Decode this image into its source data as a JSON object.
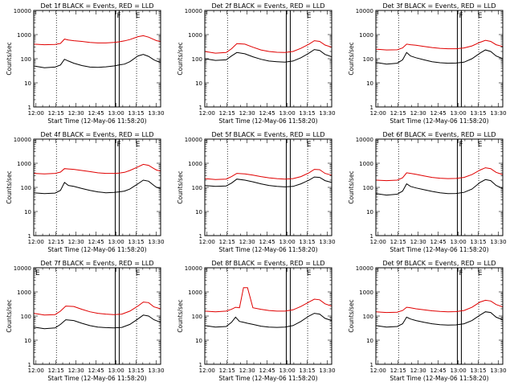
{
  "figure": {
    "common_ylabel": "Counts/sec",
    "common_xlabel": "Start Time (12-May-06 11:58:20)",
    "x_ticks": [
      "12:00",
      "12:15",
      "12:30",
      "12:45",
      "13:00",
      "13:15",
      "13:30"
    ],
    "y_ticks": [
      "1",
      "10",
      "100",
      "1000",
      "10000"
    ],
    "legend_black": "Events",
    "legend_red": "LLD",
    "series_colors": {
      "events": "#000000",
      "lld": "#e00000"
    },
    "flag_letters": [
      "F",
      "E",
      "E"
    ]
  },
  "chart_data": [
    {
      "type": "line",
      "detector": "1f",
      "title": "Det 1f BLACK = Events, RED = LLD",
      "xlabel": "Start Time (12-May-06 11:58:20)",
      "ylabel": "Counts/sec",
      "xlim_min": [
        0,
        95
      ],
      "ylim_log": [
        1,
        10000
      ],
      "x": [
        0,
        8,
        16,
        20,
        23,
        26,
        30,
        36,
        42,
        48,
        54,
        60,
        64,
        68,
        72,
        78,
        82,
        86,
        90,
        92,
        95
      ],
      "series": [
        {
          "name": "Events",
          "values": [
            50,
            42,
            45,
            55,
            95,
            80,
            65,
            52,
            45,
            44,
            46,
            50,
            55,
            60,
            75,
            130,
            150,
            125,
            90,
            80,
            70
          ]
        },
        {
          "name": "LLD",
          "values": [
            400,
            380,
            390,
            430,
            650,
            600,
            560,
            520,
            470,
            450,
            450,
            470,
            500,
            550,
            620,
            820,
            900,
            780,
            620,
            560,
            520
          ]
        }
      ],
      "markers": {
        "dotted_min": [
          17,
          77
        ],
        "solid_min": [
          61,
          64
        ],
        "letters": [
          {
            "text": "F",
            "min": 61
          },
          {
            "text": "E",
            "min": 75
          }
        ]
      }
    },
    {
      "type": "line",
      "detector": "2f",
      "title": "Det 2f BLACK = Events, RED = LLD",
      "xlabel": "Start Time (12-May-06 11:58:20)",
      "ylabel": "Counts/sec",
      "xlim_min": [
        0,
        95
      ],
      "ylim_log": [
        1,
        10000
      ],
      "x": [
        0,
        8,
        16,
        20,
        24,
        30,
        36,
        42,
        48,
        54,
        60,
        66,
        72,
        78,
        82,
        86,
        90,
        95
      ],
      "series": [
        {
          "name": "Events",
          "values": [
            100,
            85,
            90,
            130,
            180,
            160,
            120,
            95,
            80,
            75,
            72,
            80,
            110,
            170,
            240,
            220,
            150,
            120
          ]
        },
        {
          "name": "LLD",
          "values": [
            200,
            170,
            180,
            260,
            420,
            400,
            300,
            230,
            200,
            185,
            180,
            200,
            270,
            400,
            560,
            520,
            370,
            300
          ]
        }
      ],
      "markers": {
        "dotted_min": [
          17,
          77
        ],
        "solid_min": [
          61,
          64
        ],
        "letters": [
          {
            "text": "E",
            "min": 75
          }
        ]
      }
    },
    {
      "type": "line",
      "detector": "3f",
      "title": "Det 3f BLACK = Events, RED = LLD",
      "xlabel": "Start Time (12-May-06 11:58:20)",
      "ylabel": "Counts/sec",
      "xlim_min": [
        0,
        95
      ],
      "ylim_log": [
        1,
        10000
      ],
      "x": [
        0,
        8,
        16,
        20,
        23,
        26,
        30,
        36,
        42,
        48,
        54,
        60,
        66,
        72,
        78,
        82,
        86,
        90,
        95
      ],
      "series": [
        {
          "name": "Events",
          "values": [
            70,
            60,
            65,
            90,
            180,
            130,
            110,
            90,
            75,
            68,
            65,
            66,
            72,
            100,
            170,
            230,
            200,
            130,
            100
          ]
        },
        {
          "name": "LLD",
          "values": [
            250,
            230,
            235,
            280,
            400,
            380,
            360,
            320,
            290,
            270,
            260,
            260,
            280,
            340,
            480,
            580,
            520,
            380,
            320
          ]
        }
      ],
      "markers": {
        "dotted_min": [
          17,
          77
        ],
        "solid_min": [
          61,
          64
        ],
        "letters": [
          {
            "text": "F",
            "min": 61
          },
          {
            "text": "E",
            "min": 75
          }
        ]
      }
    },
    {
      "type": "line",
      "detector": "4f",
      "title": "Det 4f BLACK = Events, RED = LLD",
      "xlabel": "Start Time (12-May-06 11:58:20)",
      "ylabel": "Counts/sec",
      "xlim_min": [
        0,
        95
      ],
      "ylim_log": [
        1,
        10000
      ],
      "x": [
        0,
        8,
        16,
        20,
        23,
        26,
        30,
        36,
        42,
        48,
        54,
        60,
        64,
        68,
        72,
        78,
        82,
        86,
        90,
        92,
        95
      ],
      "series": [
        {
          "name": "Events",
          "values": [
            60,
            55,
            58,
            75,
            160,
            120,
            110,
            90,
            75,
            65,
            60,
            62,
            65,
            70,
            85,
            140,
            200,
            180,
            120,
            100,
            90
          ]
        },
        {
          "name": "LLD",
          "values": [
            380,
            360,
            380,
            430,
            600,
            580,
            560,
            500,
            450,
            400,
            380,
            380,
            390,
            420,
            500,
            700,
            900,
            820,
            600,
            520,
            470
          ]
        }
      ],
      "markers": {
        "dotted_min": [
          17,
          77
        ],
        "solid_min": [
          61,
          64
        ],
        "letters": [
          {
            "text": "F",
            "min": 61
          },
          {
            "text": "E",
            "min": 75
          }
        ]
      }
    },
    {
      "type": "line",
      "detector": "5f",
      "title": "Det 5f BLACK = Events, RED = LLD",
      "xlabel": "Start Time (12-May-06 11:58:20)",
      "ylabel": "Counts/sec",
      "xlim_min": [
        0,
        95
      ],
      "ylim_log": [
        1,
        10000
      ],
      "x": [
        0,
        8,
        16,
        20,
        24,
        30,
        36,
        42,
        48,
        54,
        60,
        66,
        72,
        78,
        82,
        86,
        90,
        95
      ],
      "series": [
        {
          "name": "Events",
          "values": [
            120,
            110,
            115,
            150,
            220,
            200,
            170,
            140,
            120,
            110,
            105,
            110,
            140,
            200,
            270,
            260,
            190,
            160
          ]
        },
        {
          "name": "LLD",
          "values": [
            230,
            210,
            220,
            280,
            380,
            360,
            320,
            280,
            250,
            230,
            220,
            230,
            280,
            400,
            560,
            540,
            380,
            320
          ]
        }
      ],
      "markers": {
        "dotted_min": [
          17,
          77
        ],
        "solid_min": [
          61,
          64
        ],
        "letters": [
          {
            "text": "E",
            "min": 75
          }
        ]
      }
    },
    {
      "type": "line",
      "detector": "6f",
      "title": "Det 6f BLACK = Events, RED = LLD",
      "xlabel": "Start Time (12-May-06 11:58:20)",
      "ylabel": "Counts/sec",
      "xlim_min": [
        0,
        95
      ],
      "ylim_log": [
        1,
        10000
      ],
      "x": [
        0,
        8,
        16,
        20,
        23,
        26,
        30,
        36,
        42,
        48,
        54,
        60,
        66,
        72,
        78,
        82,
        86,
        90,
        95
      ],
      "series": [
        {
          "name": "Events",
          "values": [
            55,
            48,
            52,
            70,
            140,
            110,
            95,
            80,
            68,
            60,
            55,
            56,
            62,
            85,
            160,
            210,
            190,
            120,
            90
          ]
        },
        {
          "name": "LLD",
          "values": [
            200,
            190,
            200,
            250,
            400,
            380,
            350,
            300,
            260,
            240,
            230,
            235,
            260,
            340,
            520,
            650,
            600,
            420,
            340
          ]
        }
      ],
      "markers": {
        "dotted_min": [
          17,
          77
        ],
        "solid_min": [
          61,
          64
        ],
        "letters": [
          {
            "text": "F",
            "min": 61
          },
          {
            "text": "E",
            "min": 75
          }
        ]
      }
    },
    {
      "type": "line",
      "detector": "7f",
      "title": "Det 7f BLACK = Events, RED = LLD",
      "xlabel": "Start Time (12-May-06 11:58:20)",
      "ylabel": "Counts/sec",
      "xlim_min": [
        0,
        95
      ],
      "ylim_log": [
        1,
        10000
      ],
      "x": [
        0,
        8,
        16,
        20,
        24,
        30,
        36,
        42,
        48,
        54,
        60,
        66,
        72,
        78,
        82,
        86,
        90,
        95
      ],
      "series": [
        {
          "name": "Events",
          "values": [
            35,
            30,
            32,
            45,
            70,
            65,
            50,
            40,
            35,
            33,
            32,
            34,
            45,
            75,
            110,
            100,
            70,
            55
          ]
        },
        {
          "name": "LLD",
          "values": [
            130,
            110,
            115,
            160,
            260,
            250,
            190,
            150,
            130,
            120,
            115,
            120,
            160,
            260,
            380,
            360,
            240,
            200
          ]
        }
      ],
      "markers": {
        "dotted_min": [
          17,
          77
        ],
        "solid_min": [
          61,
          64
        ],
        "letters": [
          {
            "text": "E",
            "min": 0
          },
          {
            "text": "E",
            "min": 75
          }
        ]
      }
    },
    {
      "type": "line",
      "detector": "8f",
      "title": "Det 8f BLACK = Events, RED = LLD",
      "xlabel": "Start Time (12-May-06 11:58:20)",
      "ylabel": "Counts/sec",
      "xlim_min": [
        0,
        95
      ],
      "ylim_log": [
        1,
        10000
      ],
      "x": [
        0,
        8,
        16,
        20,
        23,
        26,
        29,
        32,
        36,
        42,
        48,
        54,
        60,
        66,
        72,
        78,
        82,
        86,
        90,
        95
      ],
      "series": [
        {
          "name": "Events",
          "values": [
            40,
            35,
            37,
            55,
            90,
            60,
            55,
            50,
            45,
            38,
            35,
            34,
            35,
            40,
            60,
            100,
            130,
            120,
            80,
            65
          ]
        },
        {
          "name": "LLD",
          "values": [
            160,
            150,
            160,
            190,
            230,
            220,
            1500,
            1500,
            220,
            190,
            170,
            160,
            160,
            180,
            250,
            380,
            500,
            470,
            320,
            260
          ]
        }
      ],
      "markers": {
        "dotted_min": [
          17,
          77
        ],
        "solid_min": [
          61,
          64
        ],
        "letters": [
          {
            "text": "E",
            "min": 75
          }
        ]
      }
    },
    {
      "type": "line",
      "detector": "9f",
      "title": "Det 9f BLACK = Events, RED = LLD",
      "xlabel": "Start Time (12-May-06 11:58:20)",
      "ylabel": "Counts/sec",
      "xlim_min": [
        0,
        95
      ],
      "ylim_log": [
        1,
        10000
      ],
      "x": [
        0,
        8,
        16,
        20,
        23,
        26,
        30,
        36,
        42,
        48,
        54,
        60,
        66,
        72,
        78,
        82,
        86,
        90,
        95
      ],
      "series": [
        {
          "name": "Events",
          "values": [
            40,
            35,
            37,
            48,
            90,
            75,
            65,
            55,
            48,
            44,
            42,
            43,
            48,
            65,
            110,
            150,
            140,
            90,
            70
          ]
        },
        {
          "name": "LLD",
          "values": [
            150,
            140,
            145,
            170,
            230,
            220,
            200,
            180,
            165,
            155,
            150,
            152,
            170,
            230,
            380,
            450,
            420,
            300,
            240
          ]
        }
      ],
      "markers": {
        "dotted_min": [
          17,
          77
        ],
        "solid_min": [
          61,
          64
        ],
        "letters": [
          {
            "text": "F",
            "min": 61
          },
          {
            "text": "E",
            "min": 75
          }
        ]
      }
    }
  ]
}
